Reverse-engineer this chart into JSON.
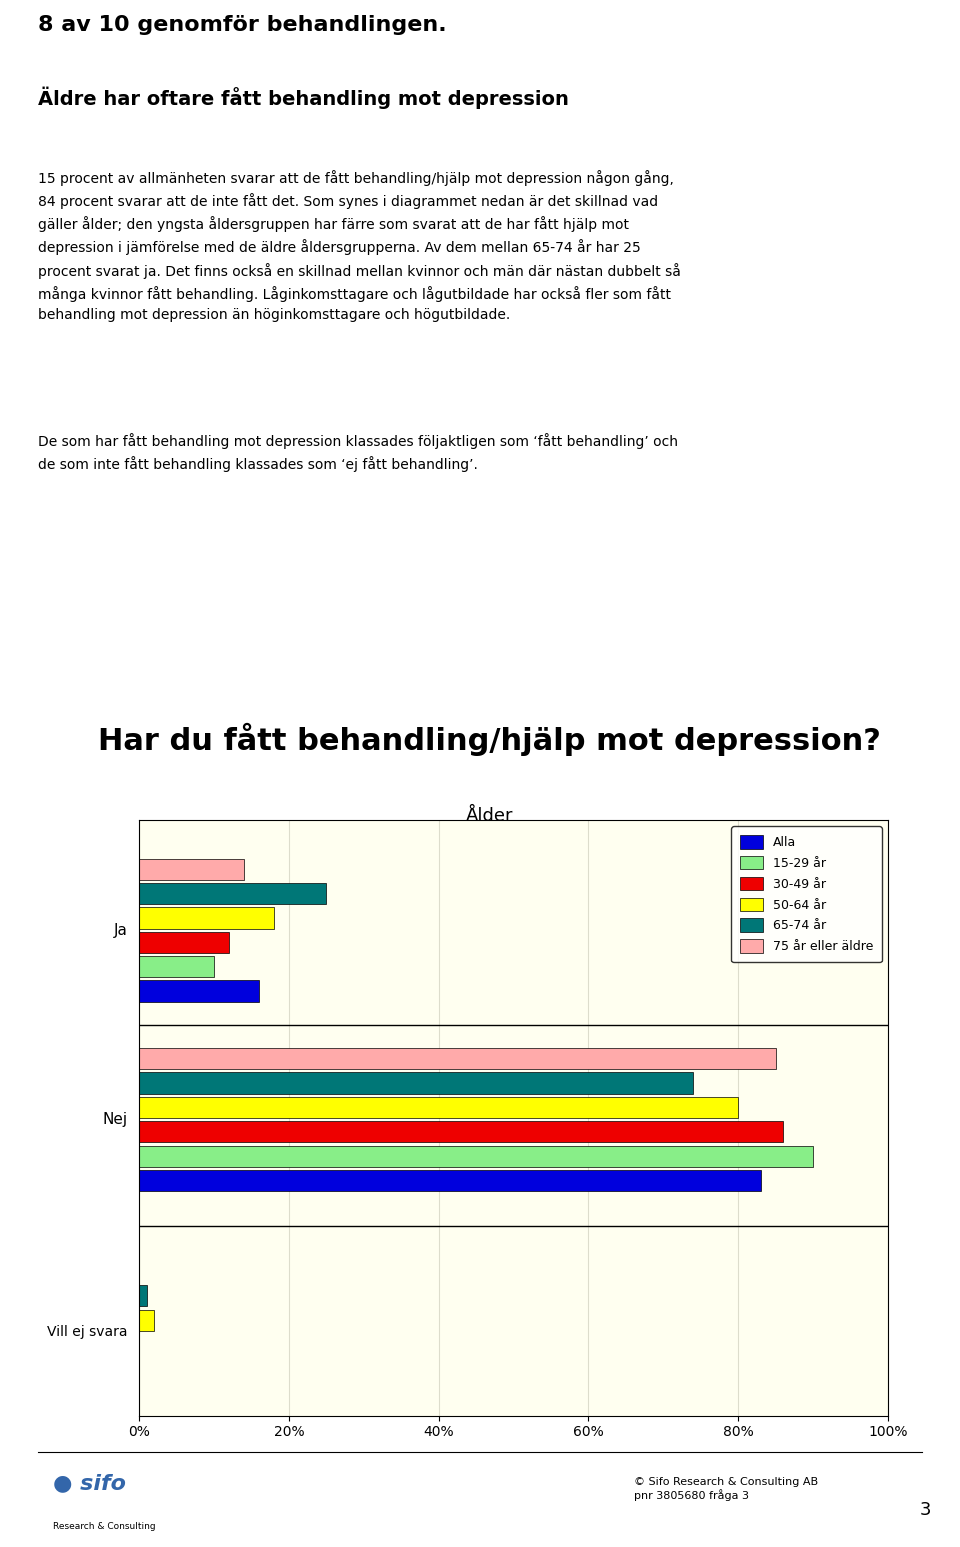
{
  "title_chart": "Har du fått behandling/hjälp mot depression?",
  "subtitle": "Ålder",
  "series": [
    {
      "label": "Alla",
      "color": "#0000DD",
      "values": [
        16,
        83,
        0
      ]
    },
    {
      "label": "15-29 år",
      "color": "#88EE88",
      "values": [
        10,
        90,
        0
      ]
    },
    {
      "label": "30-49 år",
      "color": "#EE0000",
      "values": [
        12,
        86,
        0
      ]
    },
    {
      "label": "50-64 år",
      "color": "#FFFF00",
      "values": [
        18,
        80,
        2
      ]
    },
    {
      "label": "65-74 år",
      "color": "#007777",
      "values": [
        25,
        74,
        1
      ]
    },
    {
      "label": "75 år eller äldre",
      "color": "#FFAAAA",
      "values": [
        14,
        85,
        0
      ]
    }
  ],
  "xticks": [
    0,
    20,
    40,
    60,
    80,
    100
  ],
  "xticklabels": [
    "0%",
    "20%",
    "40%",
    "60%",
    "80%",
    "100%"
  ],
  "plot_bg_color": "#FFFFF0",
  "grid_color": "#DDDDCC",
  "page_title": "8 av 10 genomför behandlingen.",
  "page_subtitle1": "Äldre har oftare fått behandling mot depression",
  "footer_right": "© Sifo Research & Consulting AB\npnr 3805680 fråga 3",
  "page_number": "3"
}
